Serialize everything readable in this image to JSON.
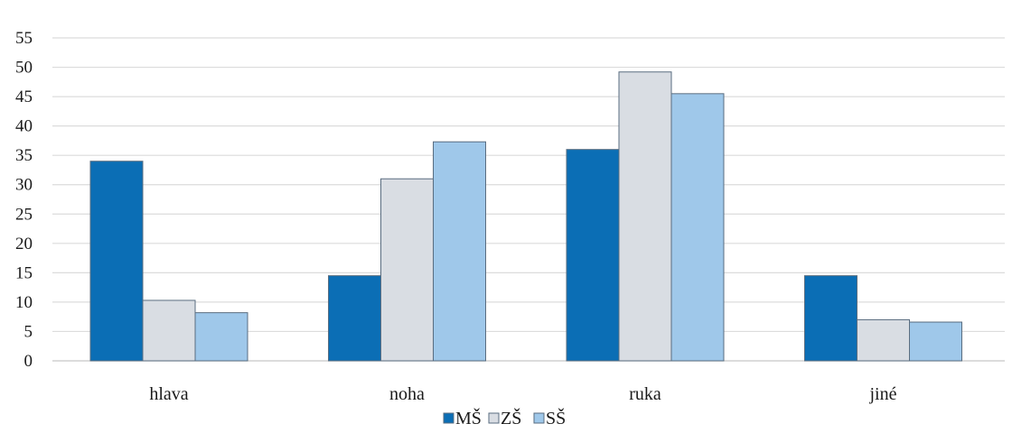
{
  "chart_data": {
    "type": "bar",
    "title": "",
    "xlabel": "",
    "ylabel": "",
    "categories": [
      "hlava",
      "noha",
      "ruka",
      "jiné"
    ],
    "series": [
      {
        "name": "MŠ",
        "values": [
          34,
          14.5,
          36,
          14.5
        ],
        "color": "#0b6eb5"
      },
      {
        "name": "ZŠ",
        "values": [
          10.3,
          31,
          49.2,
          7
        ],
        "color": "#d9dde3"
      },
      {
        "name": "SŠ",
        "values": [
          8.2,
          37.3,
          45.5,
          6.6
        ],
        "color": "#9fc8ea"
      }
    ],
    "ylim": [
      0,
      55
    ],
    "yticks": [
      0,
      5,
      10,
      15,
      20,
      25,
      30,
      35,
      40,
      45,
      50,
      55
    ],
    "grid": true,
    "legend_position": "bottom-center"
  }
}
